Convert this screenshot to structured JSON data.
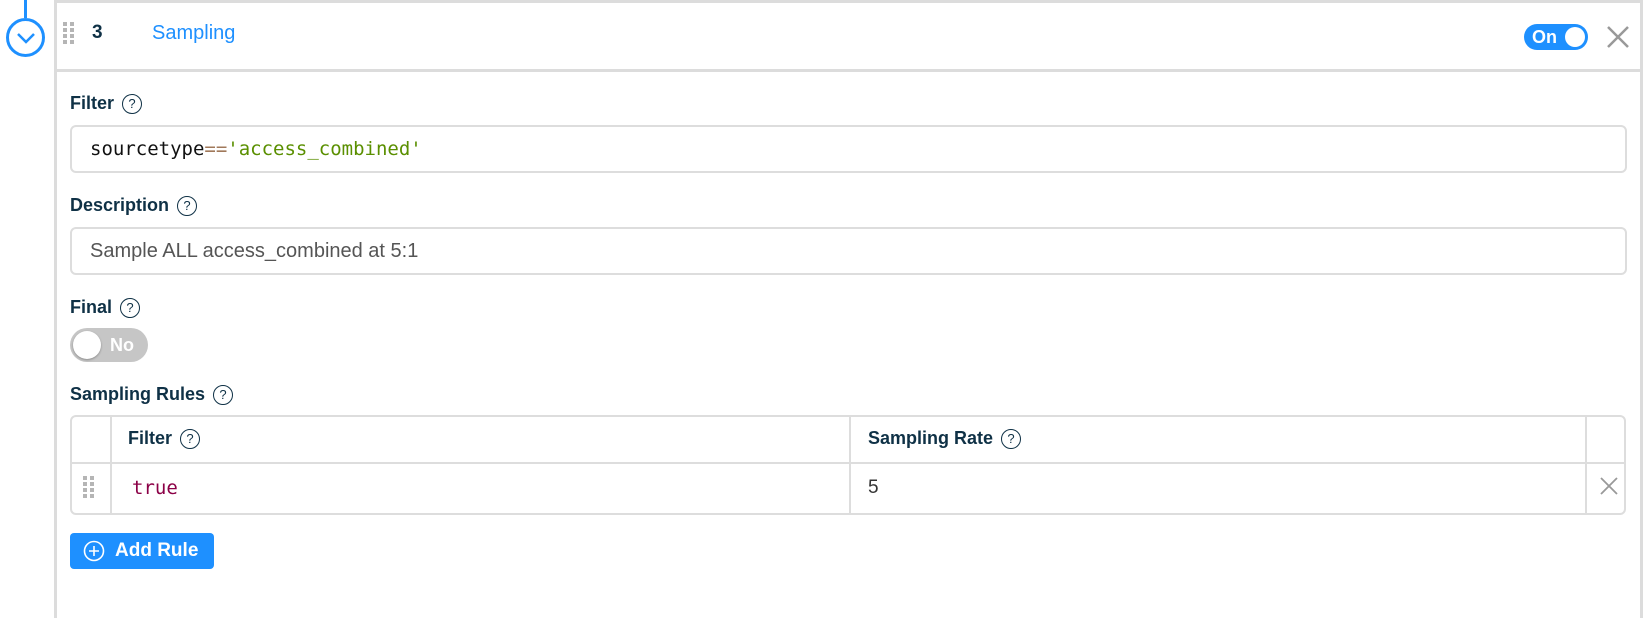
{
  "pipeline": {
    "step_number": "3",
    "step_name": "Sampling",
    "enabled_label": "On",
    "accent": "#1e90ff"
  },
  "form": {
    "filter": {
      "label": "Filter",
      "value_field": "sourcetype",
      "value_op": "==",
      "value_string": "'access_combined'"
    },
    "description": {
      "label": "Description",
      "value": "Sample ALL access_combined at 5:1"
    },
    "final": {
      "label": "Final",
      "value_label": "No"
    },
    "sampling_rules": {
      "label": "Sampling Rules",
      "columns": [
        "Filter",
        "Sampling Rate"
      ],
      "rows": [
        {
          "filter": "true",
          "rate": "5"
        }
      ],
      "add_label": "Add Rule"
    }
  }
}
